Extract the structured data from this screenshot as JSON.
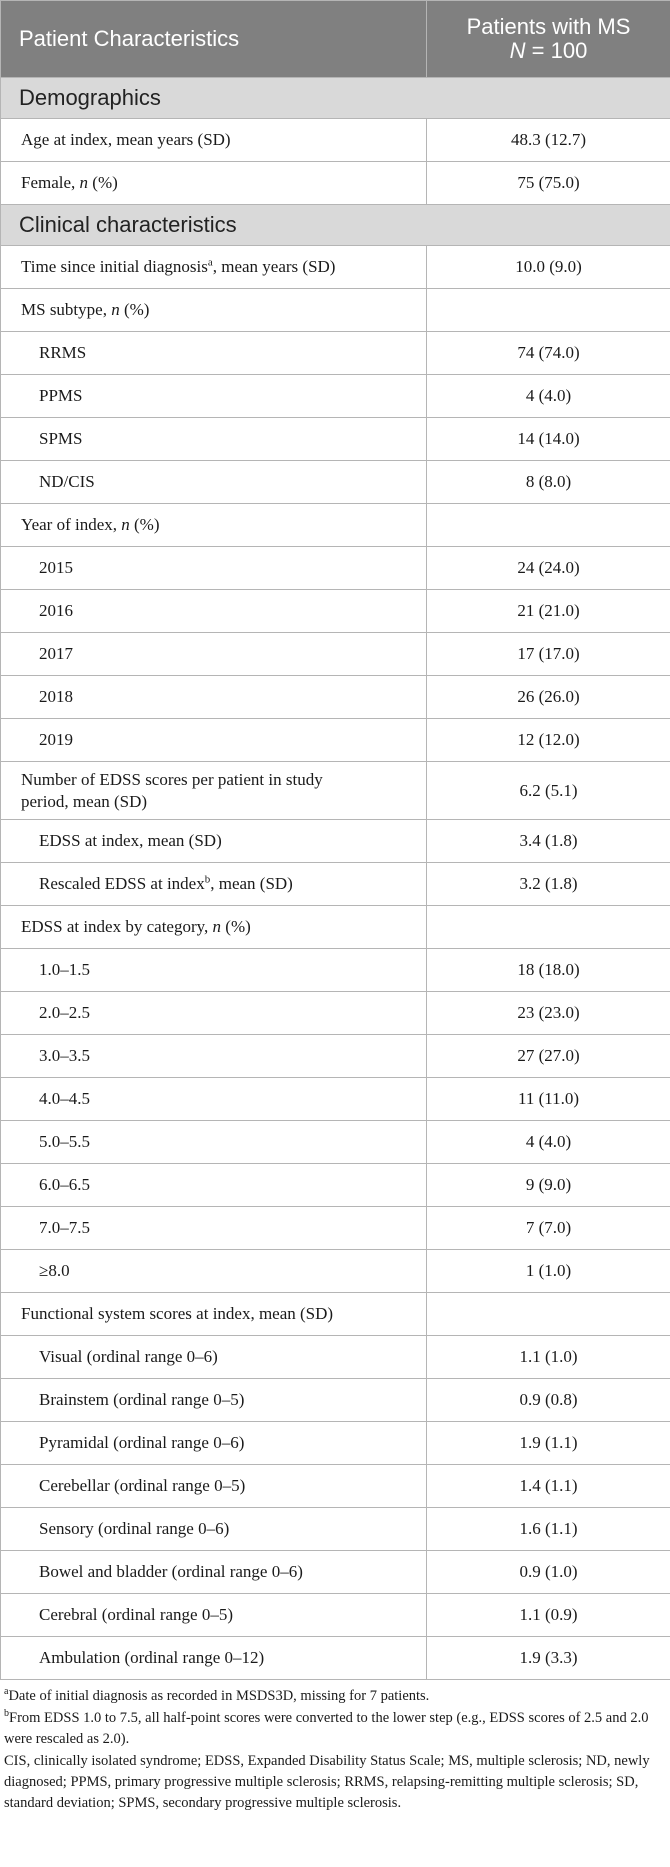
{
  "header": {
    "col1": "Patient Characteristics",
    "col2_line1": "Patients with MS",
    "col2_n": "N",
    "col2_eq": " = 100"
  },
  "rows": [
    {
      "type": "section",
      "label": "Demographics"
    },
    {
      "type": "row",
      "label": "Age at index, mean years (SD)",
      "value": "48.3 (12.7)"
    },
    {
      "type": "row",
      "label": "Female, ",
      "label_italic": "n",
      "label_after": " (%)",
      "value": "75 (75.0)"
    },
    {
      "type": "section",
      "label": "Clinical characteristics"
    },
    {
      "type": "row",
      "label": "Time since initial diagnosis",
      "sup": "a",
      "label_after": ", mean years (SD)",
      "value": "10.0 (9.0)"
    },
    {
      "type": "row",
      "label": "MS subtype, ",
      "label_italic": "n",
      "label_after": " (%)",
      "value": ""
    },
    {
      "type": "row",
      "indent": true,
      "label": "RRMS",
      "value": "74 (74.0)"
    },
    {
      "type": "row",
      "indent": true,
      "label": "PPMS",
      "value": "4 (4.0)"
    },
    {
      "type": "row",
      "indent": true,
      "label": "SPMS",
      "value": "14 (14.0)"
    },
    {
      "type": "row",
      "indent": true,
      "label": "ND/CIS",
      "value": "8 (8.0)"
    },
    {
      "type": "row",
      "label": "Year of index, ",
      "label_italic": "n",
      "label_after": " (%)",
      "value": ""
    },
    {
      "type": "row",
      "indent": true,
      "label": "2015",
      "value": "24 (24.0)"
    },
    {
      "type": "row",
      "indent": true,
      "label": "2016",
      "value": "21 (21.0)"
    },
    {
      "type": "row",
      "indent": true,
      "label": "2017",
      "value": "17 (17.0)"
    },
    {
      "type": "row",
      "indent": true,
      "label": "2018",
      "value": "26 (26.0)"
    },
    {
      "type": "row",
      "indent": true,
      "label": "2019",
      "value": "12 (12.0)"
    },
    {
      "type": "tall",
      "label_line1": "Number of EDSS scores per patient in study",
      "label_line2": "period, mean (SD)",
      "value": "6.2 (5.1)"
    },
    {
      "type": "row",
      "indent": true,
      "label": "EDSS at index, mean (SD)",
      "value": "3.4 (1.8)"
    },
    {
      "type": "row",
      "indent": true,
      "label": "Rescaled EDSS at index",
      "sup": "b",
      "label_after": ", mean (SD)",
      "value": "3.2 (1.8)"
    },
    {
      "type": "row",
      "label": "EDSS at index by category, ",
      "label_italic": "n",
      "label_after": " (%)",
      "value": ""
    },
    {
      "type": "row",
      "indent": true,
      "label": "1.0–1.5",
      "value": "18 (18.0)"
    },
    {
      "type": "row",
      "indent": true,
      "label": "2.0–2.5",
      "value": "23 (23.0)"
    },
    {
      "type": "row",
      "indent": true,
      "label": "3.0–3.5",
      "value": "27 (27.0)"
    },
    {
      "type": "row",
      "indent": true,
      "label": "4.0–4.5",
      "value": "11 (11.0)"
    },
    {
      "type": "row",
      "indent": true,
      "label": "5.0–5.5",
      "value": "4 (4.0)"
    },
    {
      "type": "row",
      "indent": true,
      "label": "6.0–6.5",
      "value": "9 (9.0)"
    },
    {
      "type": "row",
      "indent": true,
      "label": "7.0–7.5",
      "value": "7 (7.0)"
    },
    {
      "type": "row",
      "indent": true,
      "label": "≥8.0",
      "value": "1 (1.0)"
    },
    {
      "type": "row",
      "label": "Functional system scores at index, mean (SD)",
      "value": ""
    },
    {
      "type": "row",
      "indent": true,
      "label": "Visual (ordinal range 0–6)",
      "value": "1.1 (1.0)"
    },
    {
      "type": "row",
      "indent": true,
      "label": "Brainstem (ordinal range 0–5)",
      "value": "0.9 (0.8)"
    },
    {
      "type": "row",
      "indent": true,
      "label": "Pyramidal (ordinal range 0–6)",
      "value": "1.9 (1.1)"
    },
    {
      "type": "row",
      "indent": true,
      "label": "Cerebellar (ordinal range 0–5)",
      "value": "1.4 (1.1)"
    },
    {
      "type": "row",
      "indent": true,
      "label": "Sensory (ordinal range 0–6)",
      "value": "1.6 (1.1)"
    },
    {
      "type": "row",
      "indent": true,
      "label": "Bowel and bladder (ordinal range 0–6)",
      "value": "0.9 (1.0)"
    },
    {
      "type": "row",
      "indent": true,
      "label": "Cerebral (ordinal range 0–5)",
      "value": "1.1 (0.9)"
    },
    {
      "type": "row",
      "indent": true,
      "label": "Ambulation (ordinal range 0–12)",
      "value": "1.9 (3.3)"
    }
  ],
  "footnotes": {
    "a_sup": "a",
    "a_text": "Date of initial diagnosis as recorded in MSDS3D, missing for 7 patients.",
    "b_sup": "b",
    "b_text": "From EDSS 1.0 to 7.5, all half-point scores were converted to the lower step (e.g., EDSS scores of 2.5 and 2.0 were rescaled as 2.0).",
    "abbreviations": "CIS, clinically isolated syndrome; EDSS, Expanded Disability Status Scale; MS, multiple sclerosis; ND, newly diagnosed; PPMS, primary progressive multiple sclerosis; RRMS, relapsing-remitting multiple sclerosis; SD, standard deviation; SPMS, secondary progressive multiple sclerosis."
  }
}
